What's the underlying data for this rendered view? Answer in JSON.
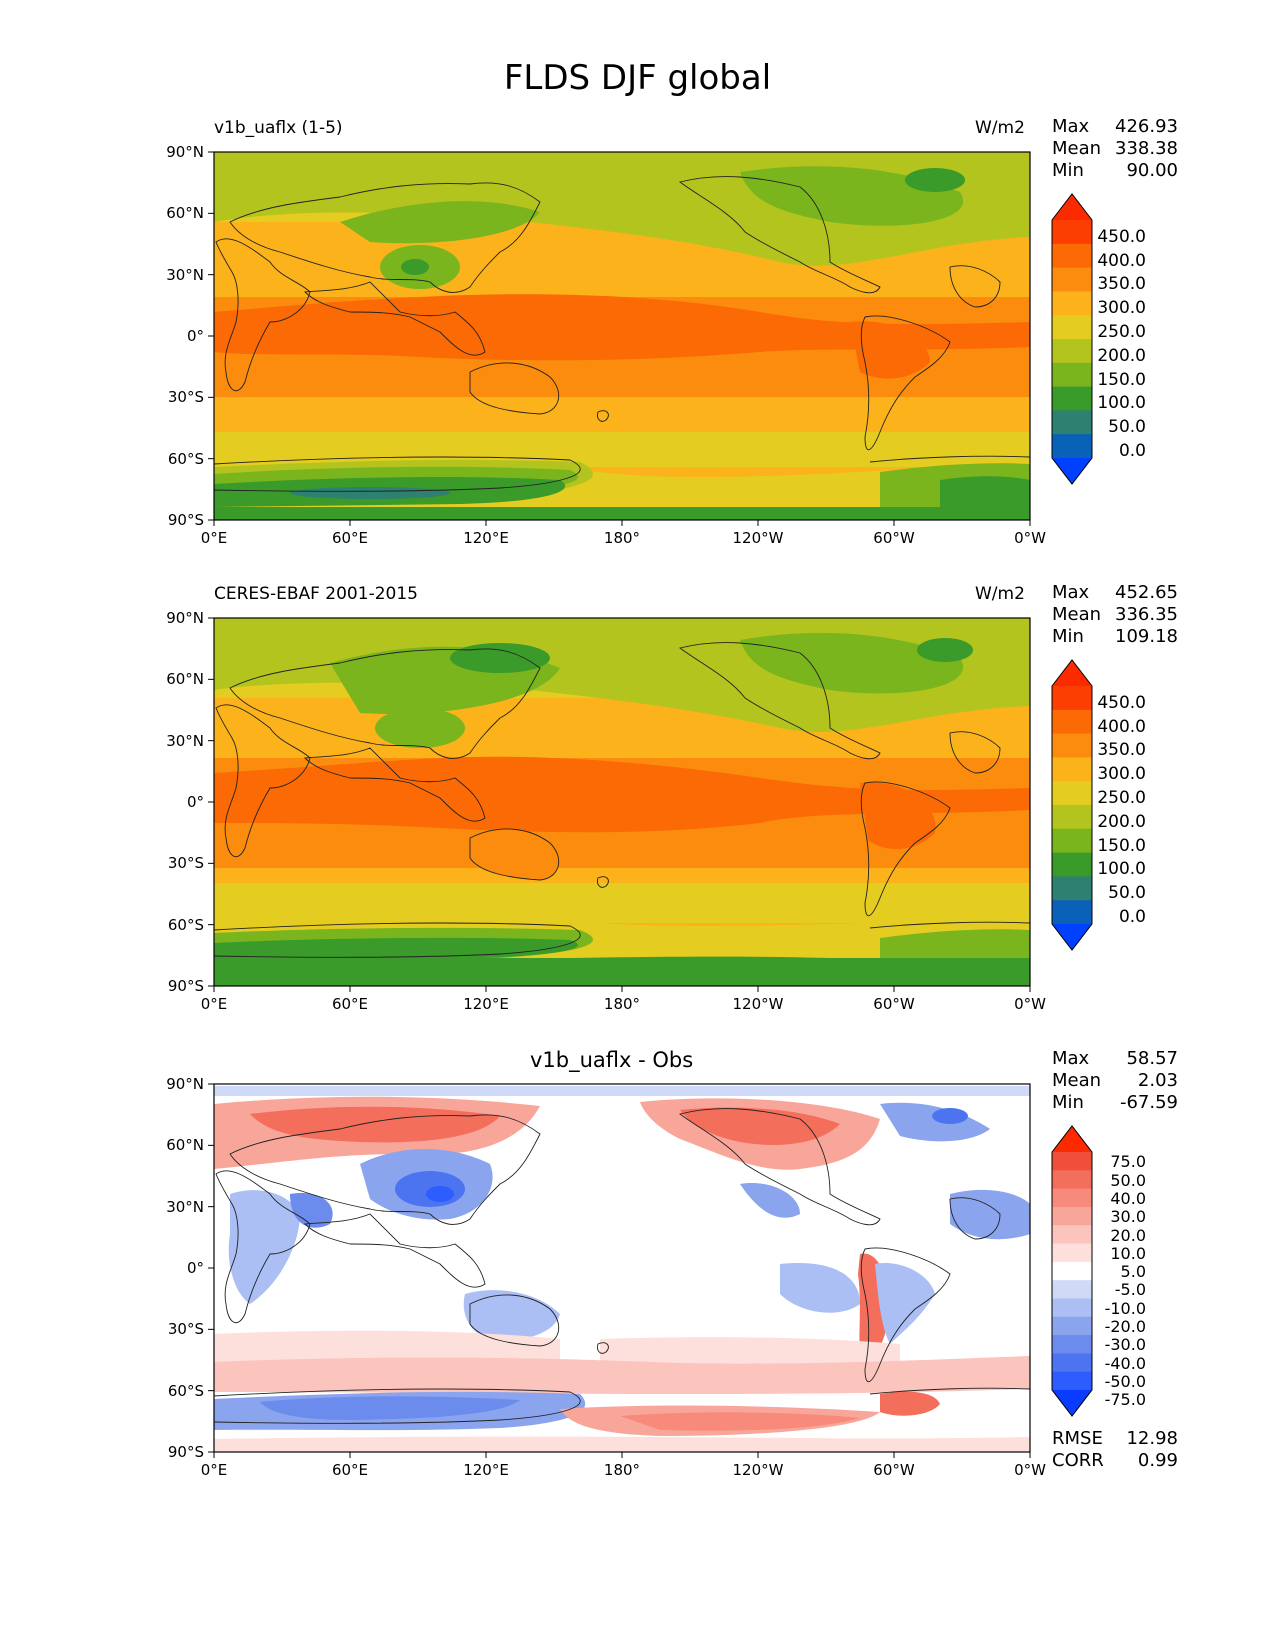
{
  "figure_title": "FLDS DJF global",
  "axes": {
    "lat_ticks": [
      "90°N",
      "60°N",
      "30°N",
      "0°",
      "30°S",
      "60°S",
      "90°S"
    ],
    "lon_ticks": [
      "0°E",
      "60°E",
      "120°E",
      "180°",
      "120°W",
      "60°W",
      "0°W"
    ]
  },
  "colors": {
    "flux": [
      "#0040ff",
      "#0a62b8",
      "#2e8070",
      "#3a9a2a",
      "#7ab51e",
      "#b4c41e",
      "#e4cc20",
      "#fbb21b",
      "#fb8c0e",
      "#fb6a04",
      "#fc3e00",
      "#fc2a00"
    ],
    "diff": [
      "#0a3cff",
      "#2d5cff",
      "#4d74f0",
      "#6b8cec",
      "#8aa4ee",
      "#abbff4",
      "#cfdaf8",
      "#ffffff",
      "#fde0dc",
      "#fbc4bc",
      "#f9a69a",
      "#f78a7a",
      "#f46e5c",
      "#f04f3a",
      "#fc2a00"
    ]
  },
  "panels": [
    {
      "id": "model",
      "left_title": "v1b_uaflx (1-5)",
      "center_title": "",
      "units": "W/m2",
      "stats": {
        "max_label": "Max",
        "max": "426.93",
        "mean_label": "Mean",
        "mean": "338.38",
        "min_label": "Min",
        "min": "90.00"
      },
      "colorbar_type": "flux",
      "colorbar_labels": [
        "450.0",
        "400.0",
        "350.0",
        "300.0",
        "250.0",
        "200.0",
        "150.0",
        "100.0",
        "50.0",
        "0.0"
      ]
    },
    {
      "id": "obs",
      "left_title": "CERES-EBAF 2001-2015",
      "center_title": "",
      "units": "W/m2",
      "stats": {
        "max_label": "Max",
        "max": "452.65",
        "mean_label": "Mean",
        "mean": "336.35",
        "min_label": "Min",
        "min": "109.18"
      },
      "colorbar_type": "flux",
      "colorbar_labels": [
        "450.0",
        "400.0",
        "350.0",
        "300.0",
        "250.0",
        "200.0",
        "150.0",
        "100.0",
        "50.0",
        "0.0"
      ]
    },
    {
      "id": "diff",
      "left_title": "",
      "center_title": "v1b_uaflx - Obs",
      "units": "",
      "stats": {
        "max_label": "Max",
        "max": "58.57",
        "mean_label": "Mean",
        "mean": "2.03",
        "min_label": "Min",
        "min": "-67.59"
      },
      "colorbar_type": "diff",
      "colorbar_labels": [
        "75.0",
        "50.0",
        "40.0",
        "30.0",
        "20.0",
        "10.0",
        "5.0",
        "-5.0",
        "-10.0",
        "-20.0",
        "-30.0",
        "-40.0",
        "-50.0",
        "-75.0"
      ],
      "rmse_label": "RMSE",
      "rmse": "12.98",
      "corr_label": "CORR",
      "corr": "0.99"
    }
  ]
}
